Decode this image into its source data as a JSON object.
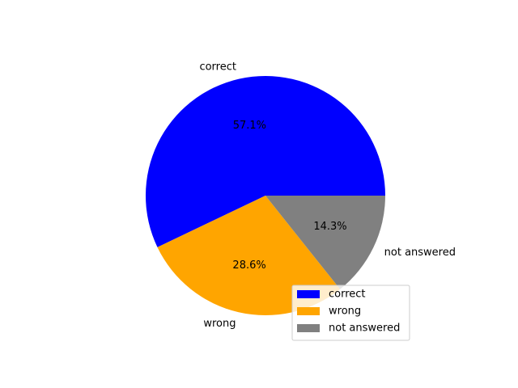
{
  "chart_data": {
    "type": "pie",
    "title": "",
    "categories": [
      "correct",
      "wrong",
      "not answered"
    ],
    "values": [
      57.1,
      28.6,
      14.3
    ],
    "percent_labels": [
      "57.1%",
      "28.6%",
      "14.3%"
    ],
    "colors": [
      "#0000ff",
      "#ffa500",
      "#808080"
    ],
    "legend": {
      "placement": "lower-right",
      "entries": [
        "correct",
        "wrong",
        "not answered"
      ]
    }
  }
}
